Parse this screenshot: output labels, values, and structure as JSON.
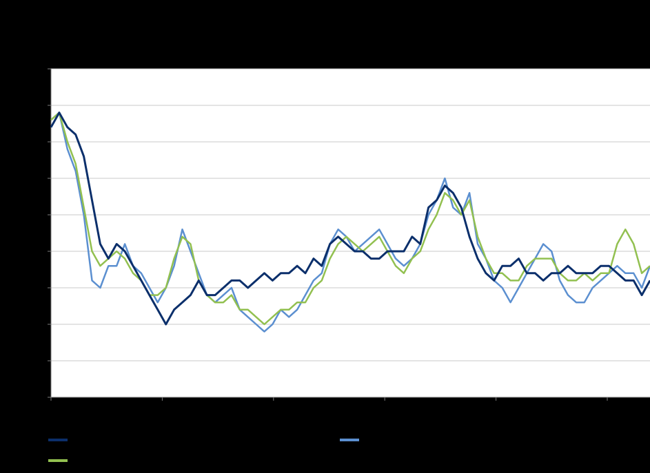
{
  "chart_data": {
    "type": "line",
    "title": "",
    "xlabel": "",
    "ylabel": "",
    "ylim": [
      0,
      9
    ],
    "grid": "horizontal",
    "legend_placement": "bottom",
    "series": [
      {
        "name": "",
        "color": "#0b2f6b",
        "values": [
          7.4,
          7.8,
          7.4,
          7.2,
          6.6,
          5.4,
          4.2,
          3.8,
          4.2,
          4.0,
          3.6,
          3.2,
          2.8,
          2.4,
          2.0,
          2.4,
          2.6,
          2.8,
          3.2,
          2.8,
          2.8,
          3.0,
          3.2,
          3.2,
          3.0,
          3.2,
          3.4,
          3.2,
          3.4,
          3.4,
          3.6,
          3.4,
          3.8,
          3.6,
          4.2,
          4.4,
          4.2,
          4.0,
          4.0,
          3.8,
          3.8,
          4.0,
          4.0,
          4.0,
          4.4,
          4.2,
          5.2,
          5.4,
          5.8,
          5.6,
          5.2,
          4.4,
          3.8,
          3.4,
          3.2,
          3.6,
          3.6,
          3.8,
          3.4,
          3.4,
          3.2,
          3.4,
          3.4,
          3.6,
          3.4,
          3.4,
          3.4,
          3.6,
          3.6,
          3.4,
          3.2,
          3.2,
          2.8,
          3.2
        ],
        "color_name": "dark-navy"
      },
      {
        "name": "",
        "color": "#5b8fd0",
        "values": [
          7.6,
          7.8,
          6.8,
          6.2,
          5.0,
          3.2,
          3.0,
          3.6,
          3.6,
          4.2,
          3.6,
          3.4,
          3.0,
          2.6,
          3.0,
          3.6,
          4.6,
          4.0,
          3.4,
          2.8,
          2.6,
          2.8,
          3.0,
          2.4,
          2.2,
          2.0,
          1.8,
          2.0,
          2.4,
          2.2,
          2.4,
          2.8,
          3.2,
          3.4,
          4.2,
          4.6,
          4.4,
          4.0,
          4.2,
          4.4,
          4.6,
          4.2,
          3.8,
          3.6,
          3.8,
          4.2,
          5.0,
          5.4,
          6.0,
          5.2,
          5.0,
          5.6,
          4.2,
          3.8,
          3.2,
          3.0,
          2.6,
          3.0,
          3.4,
          3.8,
          4.2,
          4.0,
          3.2,
          2.8,
          2.6,
          2.6,
          3.0,
          3.2,
          3.4,
          3.6,
          3.4,
          3.4,
          3.0,
          3.6
        ],
        "color_name": "light-blue"
      },
      {
        "name": "",
        "color": "#92c050",
        "values": [
          7.6,
          7.8,
          7.0,
          6.4,
          5.2,
          4.0,
          3.6,
          3.8,
          4.0,
          3.8,
          3.4,
          3.2,
          2.8,
          2.8,
          3.0,
          3.8,
          4.4,
          4.2,
          3.2,
          2.8,
          2.6,
          2.6,
          2.8,
          2.4,
          2.4,
          2.2,
          2.0,
          2.2,
          2.4,
          2.4,
          2.6,
          2.6,
          3.0,
          3.2,
          3.8,
          4.2,
          4.4,
          4.2,
          4.0,
          4.2,
          4.4,
          4.0,
          3.6,
          3.4,
          3.8,
          4.0,
          4.6,
          5.0,
          5.6,
          5.4,
          5.0,
          5.4,
          4.4,
          3.8,
          3.4,
          3.4,
          3.2,
          3.2,
          3.6,
          3.8,
          3.8,
          3.8,
          3.4,
          3.2,
          3.2,
          3.4,
          3.2,
          3.4,
          3.4,
          4.2,
          4.6,
          4.2,
          3.4,
          3.6
        ],
        "color_name": "green"
      }
    ],
    "y_gridlines": [
      1,
      2,
      3,
      4,
      5,
      6,
      7,
      8,
      9
    ],
    "x_ticks": [
      0,
      1,
      2,
      3,
      4,
      5
    ]
  }
}
